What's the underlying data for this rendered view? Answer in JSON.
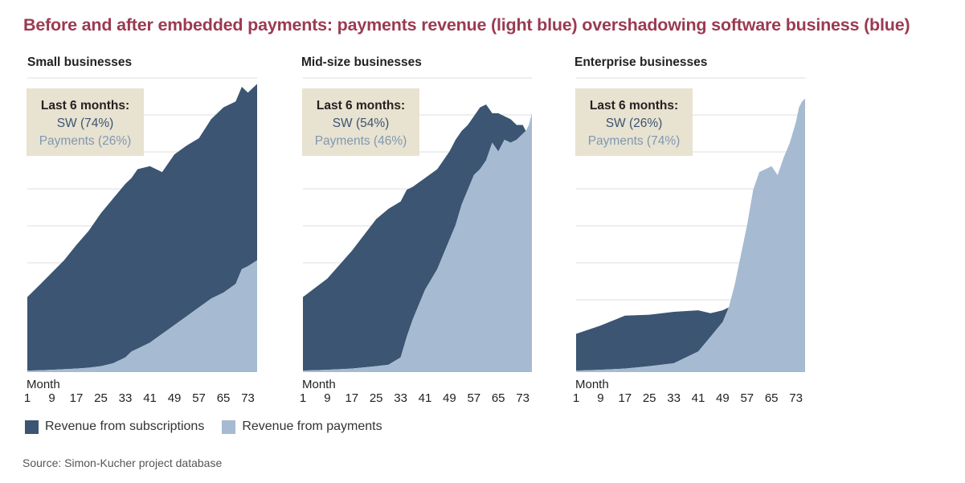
{
  "title": "Before and after embedded payments: payments revenue (light blue) overshadowing software business (blue)",
  "colors": {
    "subscriptions": "#3b5573",
    "payments": "#a6bbd2",
    "title": "#9b3a52",
    "annotation_bg": "#e8e2d0",
    "gridline": "#dddddd"
  },
  "legend": {
    "subscriptions_label": "Revenue from subscriptions",
    "payments_label": "Revenue from payments"
  },
  "source": "Source: Simon-Kucher project database",
  "chart_data": [
    {
      "type": "area",
      "title": "Small businesses",
      "xlabel": "Month",
      "x_ticks": [
        1,
        9,
        17,
        25,
        33,
        41,
        49,
        57,
        65,
        73
      ],
      "xlim": [
        1,
        76
      ],
      "ylim": [
        0,
        100
      ],
      "grid": true,
      "stacked": true,
      "annotation": {
        "heading": "Last 6 months:",
        "sw": "SW (74%)",
        "payments": "Payments (26%)"
      },
      "x": [
        1,
        5,
        9,
        13,
        17,
        21,
        25,
        29,
        33,
        35,
        37,
        41,
        45,
        49,
        53,
        57,
        61,
        65,
        69,
        71,
        73,
        76
      ],
      "series": [
        {
          "name": "Revenue from subscriptions",
          "values": [
            25,
            29,
            33,
            37,
            42,
            46.5,
            52,
            56,
            59,
            59,
            61,
            60,
            55,
            58,
            58,
            57.5,
            61,
            63,
            62,
            62,
            59,
            60
          ]
        },
        {
          "name": "Revenue from payments",
          "values": [
            0.5,
            0.6,
            0.8,
            1,
            1.2,
            1.5,
            2,
            3,
            5,
            7,
            8,
            10,
            13,
            16,
            19,
            22,
            25,
            27,
            30,
            35,
            36,
            38
          ]
        }
      ]
    },
    {
      "type": "area",
      "title": "Mid-size businesses",
      "xlabel": "Month",
      "x_ticks": [
        1,
        9,
        17,
        25,
        33,
        41,
        49,
        57,
        65,
        73
      ],
      "xlim": [
        1,
        76
      ],
      "ylim": [
        0,
        100
      ],
      "grid": true,
      "stacked": true,
      "annotation": {
        "heading": "Last 6 months:",
        "sw": "SW (54%)",
        "payments": "Payments (46%)"
      },
      "x": [
        1,
        9,
        17,
        25,
        29,
        33,
        35,
        37,
        41,
        45,
        49,
        51,
        53,
        55,
        57,
        59,
        61,
        63,
        65,
        67,
        69,
        71,
        73,
        74,
        75,
        76
      ],
      "series": [
        {
          "name": "Revenue from subscriptions",
          "values": [
            25,
            31,
            40,
            50,
            53,
            53,
            50,
            45,
            38,
            34,
            30,
            29,
            25,
            22,
            20,
            21,
            19,
            10,
            13,
            8,
            8,
            5,
            3,
            0,
            0,
            0
          ]
        },
        {
          "name": "Revenue from payments",
          "values": [
            0.5,
            0.8,
            1.2,
            2,
            2.5,
            5,
            12,
            18,
            28,
            35,
            45,
            50,
            57,
            62,
            67,
            69,
            72,
            78,
            75,
            79,
            78,
            79,
            81,
            82,
            84,
            88
          ]
        }
      ]
    },
    {
      "type": "area",
      "title": "Enterprise businesses",
      "xlabel": "Month",
      "x_ticks": [
        1,
        9,
        17,
        25,
        33,
        41,
        49,
        57,
        65,
        73
      ],
      "xlim": [
        1,
        76
      ],
      "ylim": [
        0,
        100
      ],
      "grid": true,
      "stacked": true,
      "annotation": {
        "heading": "Last 6 months:",
        "sw": "SW (26%)",
        "payments": "Payments (74%)"
      },
      "x": [
        1,
        9,
        17,
        25,
        33,
        41,
        45,
        49,
        51,
        53,
        55,
        57,
        59,
        61,
        63,
        65,
        67,
        69,
        71,
        73,
        74,
        75,
        76
      ],
      "series": [
        {
          "name": "Revenue from subscriptions",
          "values": [
            12.5,
            15,
            18,
            17.5,
            17.5,
            14,
            8,
            4,
            0,
            0,
            0,
            0,
            0,
            0,
            0,
            0,
            0,
            0,
            0,
            0,
            0,
            0,
            0
          ]
        },
        {
          "name": "Revenue from payments",
          "values": [
            0.5,
            0.8,
            1.2,
            2,
            3,
            7,
            12,
            17,
            22,
            30,
            40,
            50,
            62,
            68,
            69,
            70,
            67,
            73,
            78,
            85,
            90,
            92,
            93
          ]
        }
      ]
    }
  ]
}
